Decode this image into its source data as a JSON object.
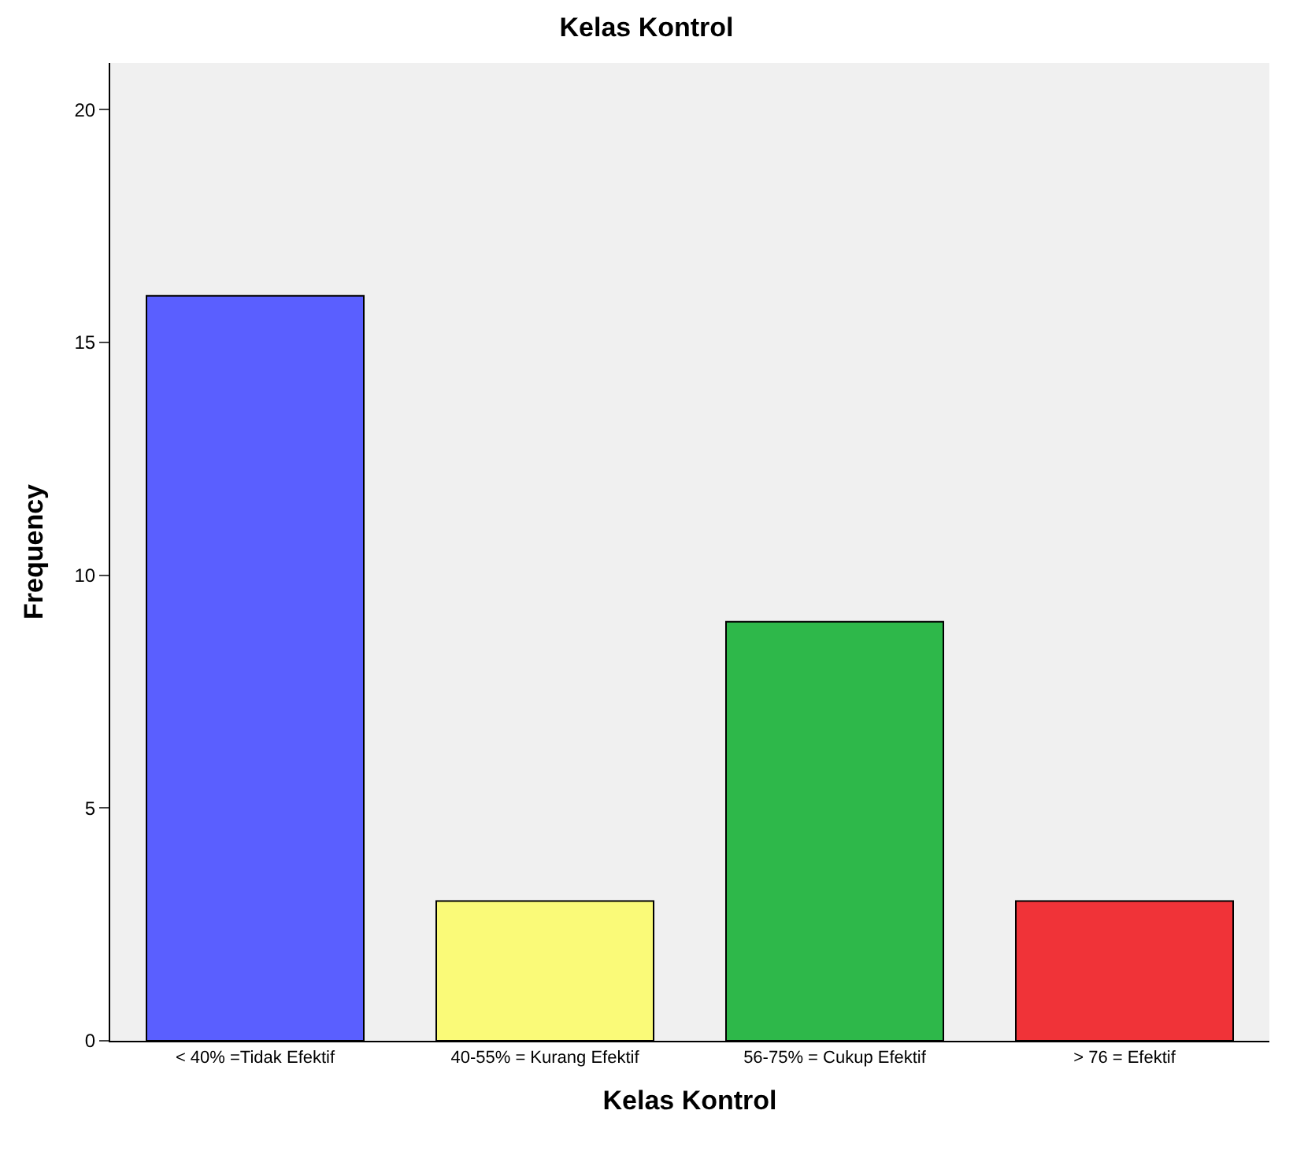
{
  "chart_data": {
    "type": "bar",
    "title": "Kelas Kontrol",
    "xlabel": "Kelas Kontrol",
    "ylabel": "Frequency",
    "categories": [
      "< 40% =Tidak Efektif",
      "40-55% = Kurang Efektif",
      "56-75% = Cukup Efektif",
      "> 76 = Efektif"
    ],
    "values": [
      16,
      3,
      9,
      3
    ],
    "colors": [
      "#5a5fff",
      "#fafa78",
      "#2eb84a",
      "#f03338"
    ],
    "ylim": [
      0,
      21
    ],
    "yticks": [
      0,
      5,
      10,
      15,
      20
    ],
    "grid": false
  }
}
